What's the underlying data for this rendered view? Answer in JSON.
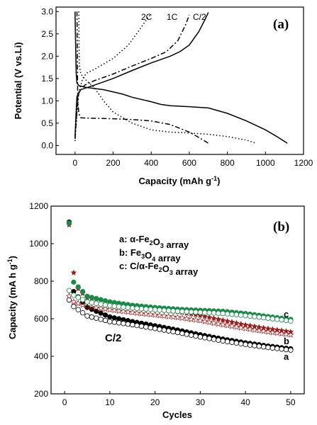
{
  "chart_data": [
    {
      "type": "line",
      "panel_label": "(a)",
      "xlabel": "Capacity (mAh g",
      "xlabel_sup": "-1",
      "xlabel_close": ")",
      "ylabel": "Potential (V vs.Li)",
      "xlim": [
        -100,
        1200
      ],
      "ylim": [
        -0.2,
        3.1
      ],
      "xticks": [
        0,
        200,
        400,
        600,
        800,
        1000,
        1200
      ],
      "yticks": [
        0.0,
        0.5,
        1.0,
        1.5,
        2.0,
        2.5,
        3.0
      ],
      "ytick_labels": [
        "0.0",
        "0.5",
        "1.0",
        "1.5",
        "2.0",
        "2.5",
        "3.0"
      ],
      "annotations": [
        "2C",
        "1C",
        "C/2"
      ],
      "series": [
        {
          "name": "C/2",
          "style": "solid",
          "curve": "discharge",
          "points": [
            [
              0,
              3.0
            ],
            [
              3,
              2.2
            ],
            [
              6,
              1.6
            ],
            [
              10,
              1.4
            ],
            [
              20,
              1.34
            ],
            [
              60,
              1.3
            ],
            [
              150,
              1.25
            ],
            [
              250,
              1.15
            ],
            [
              300,
              1.08
            ],
            [
              400,
              0.98
            ],
            [
              450,
              0.92
            ],
            [
              500,
              0.89
            ],
            [
              600,
              0.87
            ],
            [
              700,
              0.84
            ],
            [
              800,
              0.72
            ],
            [
              900,
              0.55
            ],
            [
              1000,
              0.35
            ],
            [
              1060,
              0.2
            ],
            [
              1115,
              0.05
            ]
          ]
        },
        {
          "name": "C/2",
          "style": "solid",
          "curve": "charge",
          "points": [
            [
              0,
              0.2
            ],
            [
              5,
              0.7
            ],
            [
              10,
              1.1
            ],
            [
              30,
              1.25
            ],
            [
              100,
              1.35
            ],
            [
              200,
              1.5
            ],
            [
              300,
              1.68
            ],
            [
              400,
              1.85
            ],
            [
              500,
              2.0
            ],
            [
              550,
              2.1
            ],
            [
              600,
              2.25
            ],
            [
              650,
              2.55
            ],
            [
              680,
              2.8
            ],
            [
              700,
              2.98
            ]
          ]
        },
        {
          "name": "1C",
          "style": "dashdot",
          "curve": "discharge",
          "points": [
            [
              10,
              3.0
            ],
            [
              12,
              2.0
            ],
            [
              14,
              1.0
            ],
            [
              20,
              0.72
            ],
            [
              30,
              0.62
            ],
            [
              80,
              0.61
            ],
            [
              200,
              0.6
            ],
            [
              300,
              0.58
            ],
            [
              400,
              0.55
            ],
            [
              500,
              0.47
            ],
            [
              600,
              0.3
            ],
            [
              650,
              0.18
            ],
            [
              700,
              0.05
            ]
          ]
        },
        {
          "name": "1C",
          "style": "dashdot",
          "curve": "charge",
          "points": [
            [
              0,
              0.15
            ],
            [
              10,
              0.8
            ],
            [
              20,
              1.2
            ],
            [
              50,
              1.35
            ],
            [
              100,
              1.45
            ],
            [
              200,
              1.6
            ],
            [
              300,
              1.78
            ],
            [
              400,
              1.95
            ],
            [
              480,
              2.1
            ],
            [
              540,
              2.35
            ],
            [
              580,
              2.7
            ],
            [
              600,
              2.92
            ]
          ]
        },
        {
          "name": "2C",
          "style": "dotted",
          "curve": "discharge",
          "points": [
            [
              20,
              3.0
            ],
            [
              21,
              2.2
            ],
            [
              22,
              1.8
            ],
            [
              30,
              1.6
            ],
            [
              60,
              1.45
            ],
            [
              100,
              1.3
            ],
            [
              150,
              1.0
            ],
            [
              200,
              0.75
            ],
            [
              300,
              0.5
            ],
            [
              400,
              0.35
            ],
            [
              500,
              0.3
            ],
            [
              600,
              0.28
            ],
            [
              700,
              0.25
            ],
            [
              800,
              0.2
            ],
            [
              900,
              0.12
            ],
            [
              950,
              0.05
            ]
          ]
        },
        {
          "name": "2C",
          "style": "dotted",
          "curve": "charge",
          "points": [
            [
              0,
              0.1
            ],
            [
              10,
              0.7
            ],
            [
              20,
              1.2
            ],
            [
              40,
              1.5
            ],
            [
              60,
              1.62
            ],
            [
              100,
              1.7
            ],
            [
              200,
              1.95
            ],
            [
              280,
              2.25
            ],
            [
              340,
              2.6
            ],
            [
              380,
              2.85
            ],
            [
              400,
              2.95
            ]
          ]
        }
      ]
    },
    {
      "type": "scatter",
      "panel_label": "(b)",
      "xlabel": "Cycles",
      "ylabel": "Capacity (mA h g",
      "ylabel_sup": "-1",
      "ylabel_close": ")",
      "xlim": [
        -3,
        53
      ],
      "ylim": [
        200,
        1200
      ],
      "xticks": [
        0,
        10,
        20,
        30,
        40,
        50
      ],
      "yticks": [
        200,
        400,
        600,
        800,
        1000,
        1200
      ],
      "rate_label": "C/2",
      "legend_position": "top-right",
      "legend": [
        {
          "key": "a:",
          "parts": [
            [
              "α-Fe",
              ""
            ],
            [
              "2",
              "sub"
            ],
            [
              "O",
              ""
            ],
            [
              "3",
              "sub"
            ],
            [
              " array",
              ""
            ]
          ]
        },
        {
          "key": "b:",
          "parts": [
            [
              "Fe",
              ""
            ],
            [
              "3",
              "sub"
            ],
            [
              "O",
              ""
            ],
            [
              "4",
              "sub"
            ],
            [
              " array",
              ""
            ]
          ]
        },
        {
          "key": "c:",
          "parts": [
            [
              "C/α-Fe",
              ""
            ],
            [
              "2",
              "sub"
            ],
            [
              "O",
              ""
            ],
            [
              "3",
              "sub"
            ],
            [
              " array",
              ""
            ]
          ]
        }
      ],
      "series": [
        {
          "name": "a",
          "color": "#000000",
          "marker": "circle-half",
          "discharge_first": 1115,
          "discharge_anchors": [
            [
              2,
              745
            ],
            [
              5,
              660
            ],
            [
              10,
              610
            ],
            [
              15,
              585
            ],
            [
              20,
              563
            ],
            [
              25,
              540
            ],
            [
              30,
              515
            ],
            [
              35,
              492
            ],
            [
              40,
              472
            ],
            [
              45,
              455
            ],
            [
              50,
              440
            ]
          ],
          "charge_anchors": [
            [
              1,
              700
            ],
            [
              2,
              665
            ],
            [
              5,
              615
            ],
            [
              10,
              585
            ],
            [
              15,
              568
            ],
            [
              20,
              548
            ],
            [
              25,
              527
            ],
            [
              30,
              503
            ],
            [
              35,
              482
            ],
            [
              40,
              463
            ],
            [
              45,
              447
            ],
            [
              50,
              433
            ]
          ]
        },
        {
          "name": "b",
          "color": "#9b1b1b",
          "marker": "star",
          "discharge_first": 1100,
          "discharge_anchors": [
            [
              2,
              845
            ],
            [
              3,
              760
            ],
            [
              5,
              710
            ],
            [
              10,
              685
            ],
            [
              15,
              668
            ],
            [
              20,
              652
            ],
            [
              25,
              637
            ],
            [
              30,
              617
            ],
            [
              35,
              592
            ],
            [
              40,
              567
            ],
            [
              45,
              547
            ],
            [
              50,
              530
            ]
          ],
          "charge_anchors": [
            [
              1,
              720
            ],
            [
              2,
              690
            ],
            [
              5,
              665
            ],
            [
              10,
              648
            ],
            [
              15,
              633
            ],
            [
              20,
              620
            ],
            [
              25,
              607
            ],
            [
              30,
              590
            ],
            [
              35,
              568
            ],
            [
              40,
              548
            ],
            [
              45,
              530
            ],
            [
              50,
              515
            ]
          ]
        },
        {
          "name": "c",
          "color": "#1a8a4a",
          "marker": "circle-half",
          "discharge_first": 1110,
          "discharge_anchors": [
            [
              2,
              795
            ],
            [
              5,
              720
            ],
            [
              10,
              690
            ],
            [
              15,
              672
            ],
            [
              20,
              660
            ],
            [
              25,
              651
            ],
            [
              30,
              645
            ],
            [
              35,
              640
            ],
            [
              40,
              628
            ],
            [
              45,
              612
            ],
            [
              50,
              597
            ]
          ],
          "charge_anchors": [
            [
              1,
              750
            ],
            [
              2,
              725
            ],
            [
              5,
              690
            ],
            [
              10,
              670
            ],
            [
              15,
              657
            ],
            [
              20,
              648
            ],
            [
              25,
              640
            ],
            [
              30,
              634
            ],
            [
              35,
              628
            ],
            [
              40,
              617
            ],
            [
              45,
              603
            ],
            [
              50,
              588
            ]
          ]
        }
      ],
      "series_end_labels": [
        "a",
        "b",
        "c"
      ]
    }
  ]
}
